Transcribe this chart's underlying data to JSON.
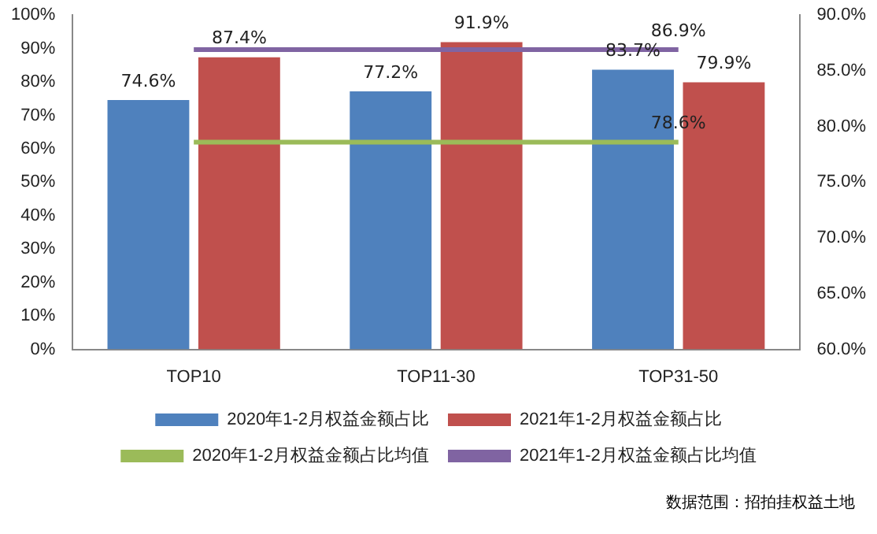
{
  "chart_data": {
    "type": "bar",
    "categories": [
      "TOP10",
      "TOP11-30",
      "TOP31-50"
    ],
    "series": [
      {
        "name": "2020年1-2月权益金额占比",
        "color": "#4f81bd",
        "values": [
          74.6,
          77.2,
          83.7
        ],
        "value_labels": [
          "74.6%",
          "77.2%",
          "83.7%"
        ]
      },
      {
        "name": "2021年1-2月权益金额占比",
        "color": "#c0504d",
        "values": [
          87.4,
          91.9,
          79.9
        ],
        "value_labels": [
          "87.4%",
          "91.9%",
          "79.9%"
        ]
      },
      {
        "name": "2020年1-2月权益金额占比均值",
        "type": "line",
        "axis": "y2",
        "color": "#9bbb59",
        "values": [
          78.6,
          78.6,
          78.6
        ],
        "value_labels": [
          null,
          null,
          "78.6%"
        ]
      },
      {
        "name": "2021年1-2月权益金额占比均值",
        "type": "line",
        "axis": "y2",
        "color": "#8064a2",
        "values": [
          86.9,
          86.9,
          86.9
        ],
        "value_labels": [
          null,
          null,
          "86.9%"
        ]
      }
    ],
    "ylim": [
      0,
      100
    ],
    "yticks": [
      {
        "value": 0,
        "label": "0%"
      },
      {
        "value": 10,
        "label": "10%"
      },
      {
        "value": 20,
        "label": "20%"
      },
      {
        "value": 30,
        "label": "30%"
      },
      {
        "value": 40,
        "label": "40%"
      },
      {
        "value": 50,
        "label": "50%"
      },
      {
        "value": 60,
        "label": "60%"
      },
      {
        "value": 70,
        "label": "70%"
      },
      {
        "value": 80,
        "label": "80%"
      },
      {
        "value": 90,
        "label": "90%"
      },
      {
        "value": 100,
        "label": "100%"
      }
    ],
    "y2lim": [
      60,
      90
    ],
    "y2ticks": [
      {
        "value": 60,
        "label": "60.0%"
      },
      {
        "value": 65,
        "label": "65.0%"
      },
      {
        "value": 70,
        "label": "70.0%"
      },
      {
        "value": 75,
        "label": "75.0%"
      },
      {
        "value": 80,
        "label": "80.0%"
      },
      {
        "value": 85,
        "label": "85.0%"
      },
      {
        "value": 90,
        "label": "90.0%"
      }
    ],
    "grid": false,
    "legend": "bottom",
    "marker": "none",
    "annotations": [
      "数据范围：招拍挂权益土地"
    ]
  }
}
